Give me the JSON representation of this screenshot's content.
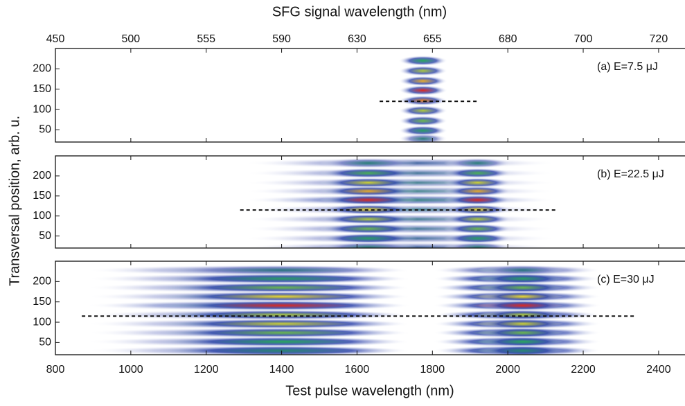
{
  "chart_data": {
    "type": "heatmap",
    "title": "SFG signal wavelength (nm)",
    "xlabel": "Test pulse wavelength (nm)",
    "ylabel": "Transversal position, arb. u.",
    "xlim": [
      800,
      2470
    ],
    "xticks": [
      800,
      1000,
      1200,
      1400,
      1600,
      1800,
      2000,
      2200,
      2400
    ],
    "x2ticks": [
      {
        "value": 800,
        "label": "450"
      },
      {
        "value": 1000,
        "label": "500"
      },
      {
        "value": 1200,
        "label": "555"
      },
      {
        "value": 1400,
        "label": "590"
      },
      {
        "value": 1600,
        "label": "630"
      },
      {
        "value": 1800,
        "label": "655"
      },
      {
        "value": 2000,
        "label": "680"
      },
      {
        "value": 2200,
        "label": "700"
      },
      {
        "value": 2400,
        "label": "720"
      }
    ],
    "ylim": [
      20,
      250
    ],
    "yticks": [
      50,
      100,
      150,
      200
    ],
    "panels": [
      {
        "annotation": "(a) E=7.5 μJ",
        "segments": [
          [
            1710,
            1840
          ]
        ],
        "fringe_y": [
          220,
          195,
          170,
          147,
          122,
          97,
          72,
          48,
          28
        ],
        "fringe_intensity": [
          0.5,
          0.7,
          0.85,
          1,
          0.9,
          0.7,
          0.6,
          0.45,
          0.3
        ],
        "dashed_y": 120,
        "dashed_x": [
          1660,
          1920
        ]
      },
      {
        "annotation": "(b) E=22.5 μJ",
        "segments": [
          [
            1300,
            2130
          ],
          [
            1500,
            1760
          ],
          [
            1830,
            2010
          ]
        ],
        "fringe_y": [
          232,
          207,
          183,
          162,
          140,
          116,
          92,
          68,
          44,
          22
        ],
        "fringe_intensity": [
          0.3,
          0.55,
          0.75,
          0.85,
          1,
          0.8,
          0.7,
          0.6,
          0.45,
          0.3
        ],
        "dashed_y": 115,
        "dashed_x": [
          1290,
          2130
        ]
      },
      {
        "annotation": "(c) E=30 μJ",
        "segments": [
          [
            880,
            1750
          ],
          [
            1060,
            1740
          ],
          [
            1800,
            2250
          ],
          [
            1920,
            2160
          ]
        ],
        "fringe_y": [
          228,
          207,
          185,
          163,
          141,
          118,
          96,
          74,
          52,
          30
        ],
        "fringe_intensity": [
          0.25,
          0.45,
          0.6,
          0.8,
          1,
          0.7,
          0.75,
          0.6,
          0.5,
          0.35
        ],
        "dashed_y": 115,
        "dashed_x": [
          870,
          2340
        ]
      }
    ]
  }
}
